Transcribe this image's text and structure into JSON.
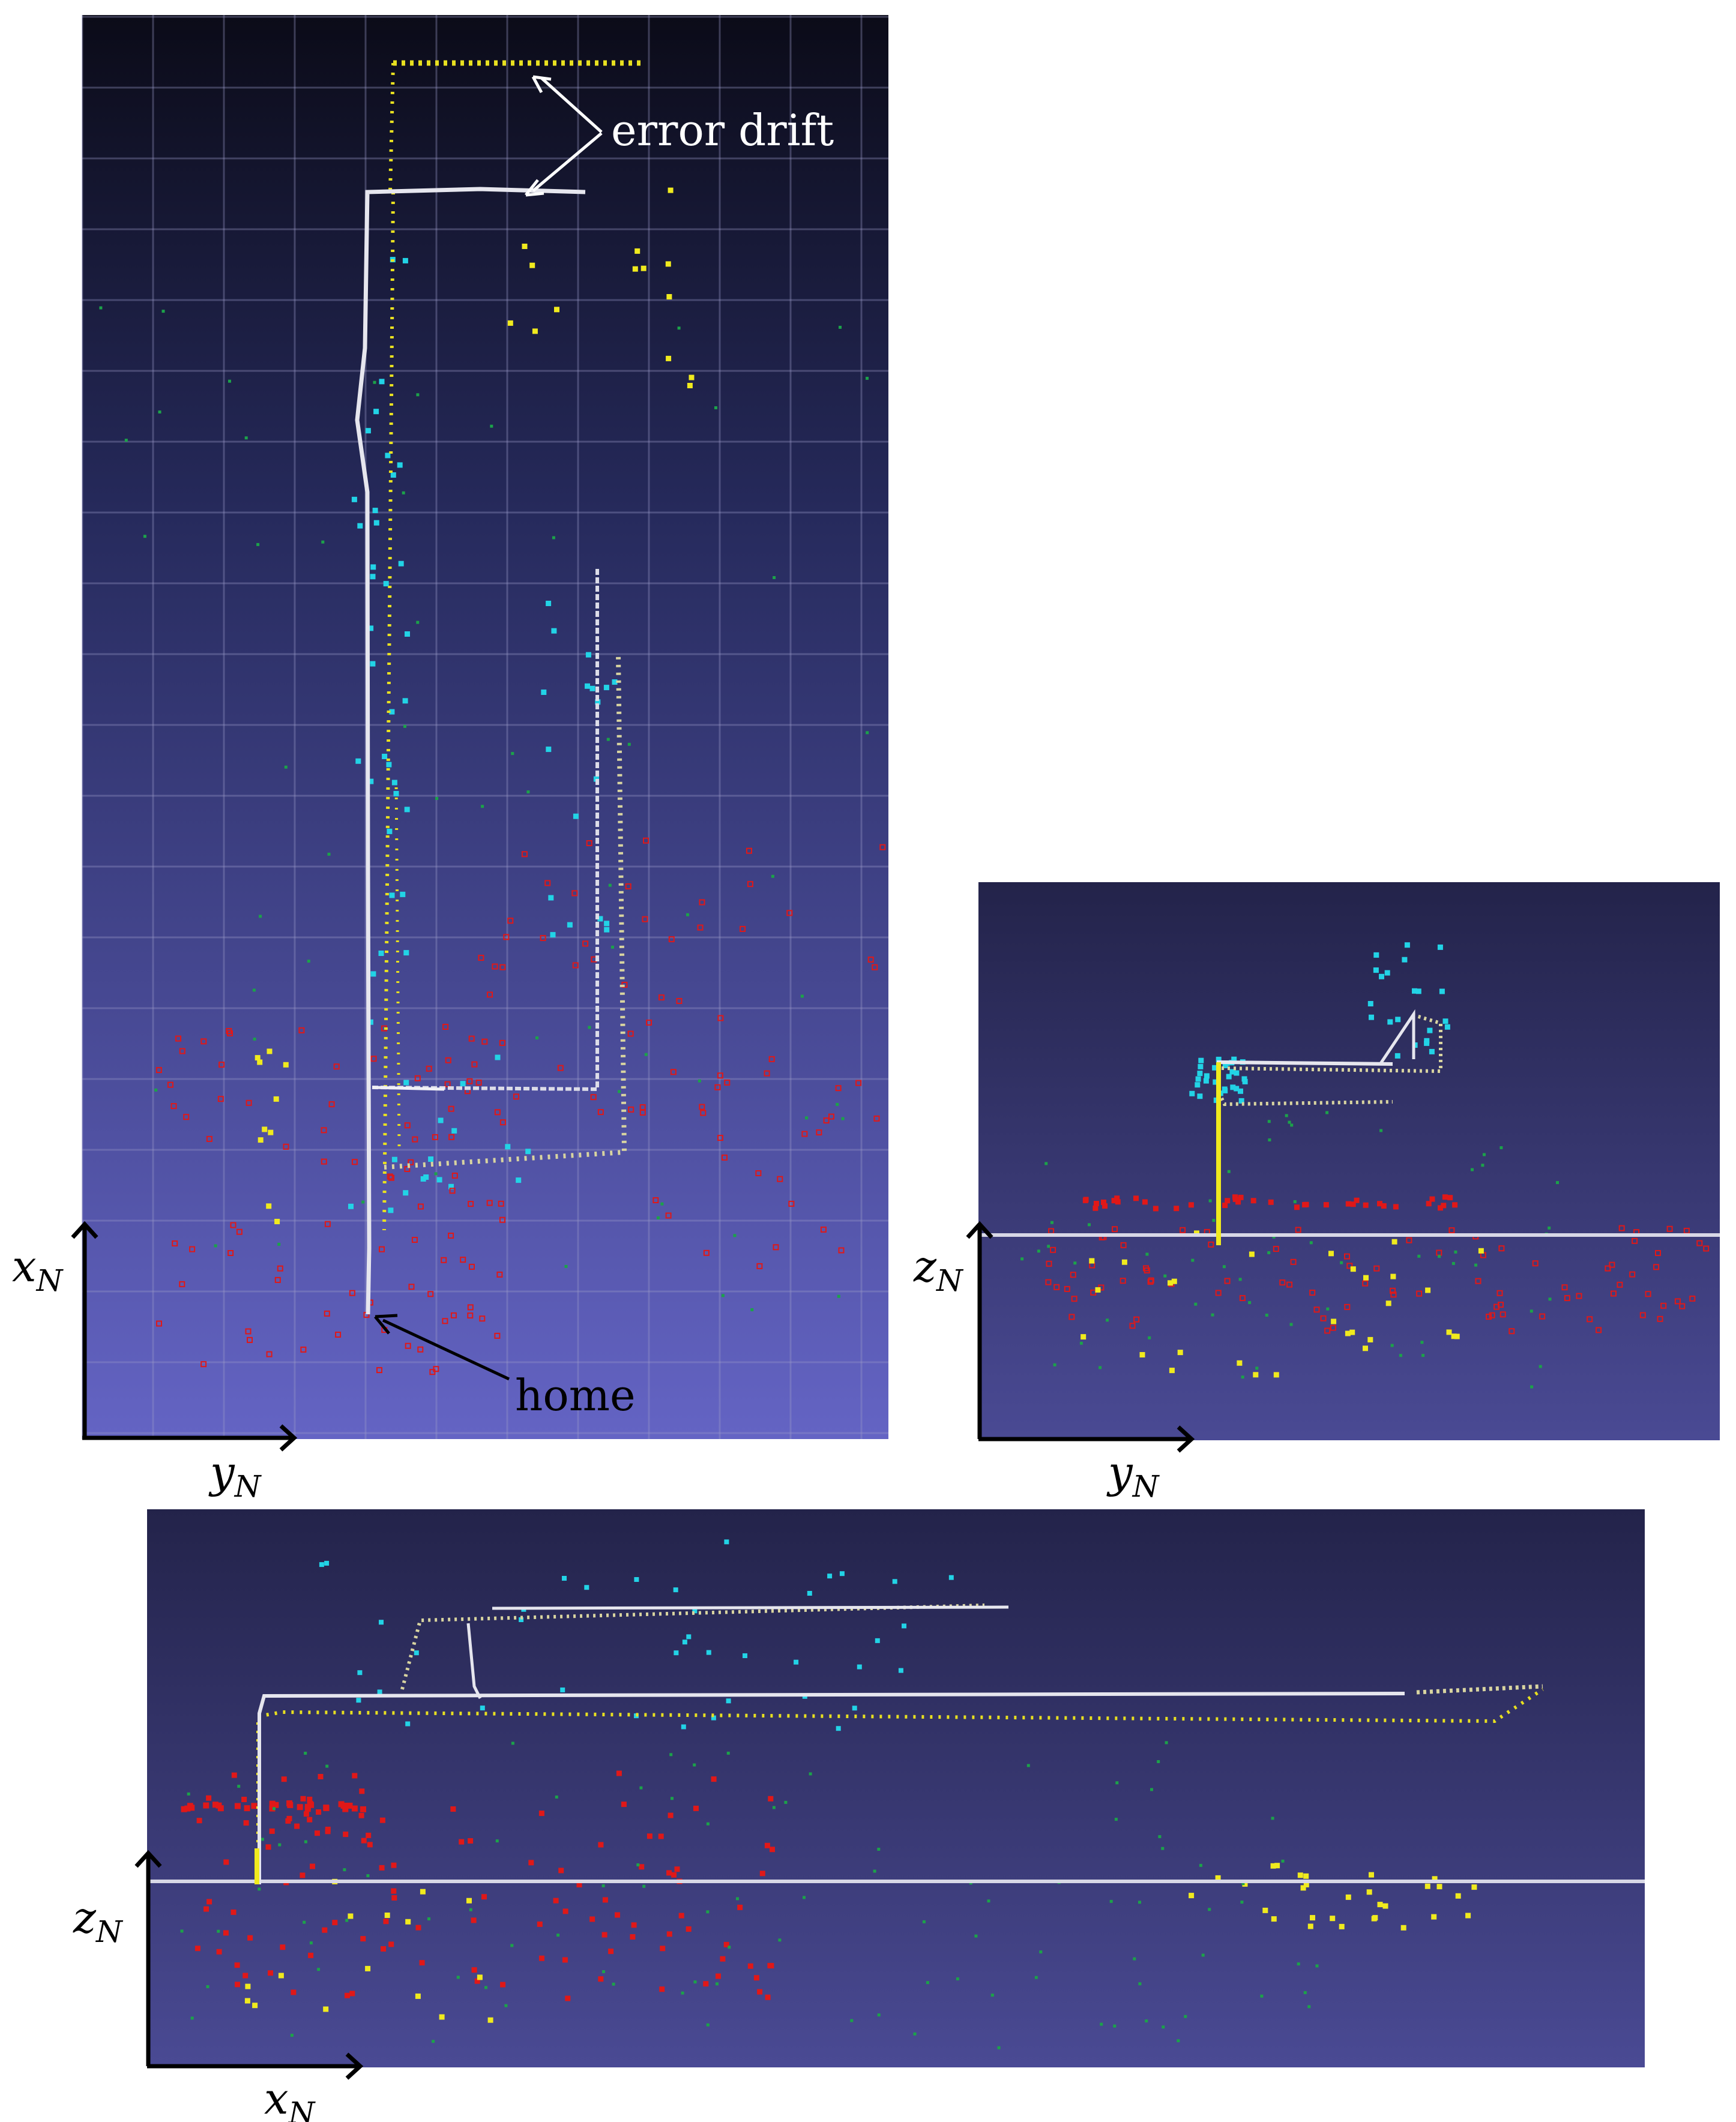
{
  "annotations": {
    "error_drift": "error drift",
    "home": "home"
  },
  "axes": {
    "x": "x",
    "y": "y",
    "z": "z",
    "sub": "N"
  },
  "colors": {
    "trajectory": "#e6e6ee",
    "drift_trajectory": "#e8e020",
    "landmark_cyan": "#22d3e6",
    "landmark_yellow": "#f0ea1e",
    "landmark_green": "#1ca24a",
    "landmark_red": "#e01818",
    "ground_line": "#d8d8e6",
    "top_view_sky_start": "#0c0c1a",
    "top_view_sky_end": "#6262c2",
    "side_view_bg_start": "#23234c",
    "side_view_bg_end": "#484892"
  },
  "panels": [
    {
      "id": "top-view",
      "projection": "x-y",
      "grid": true
    },
    {
      "id": "side-view-yz",
      "projection": "z-y",
      "grid": false
    },
    {
      "id": "side-view-xz",
      "projection": "z-x",
      "grid": false
    }
  ]
}
